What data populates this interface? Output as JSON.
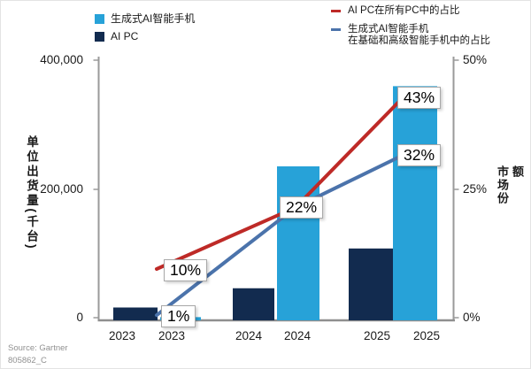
{
  "chart_data": {
    "type": "bar",
    "combo": "bars with overlaid percentage lines (dual axis)",
    "categories": [
      "2023",
      "2024",
      "2025"
    ],
    "x_tick_labels": [
      "2023",
      "2023",
      "2024",
      "2024",
      "2025",
      "2025"
    ],
    "bar_series": [
      {
        "name": "生成式AI智能手机",
        "color": "#27A2D8",
        "values": [
          5000,
          240000,
          365000
        ]
      },
      {
        "name": "AI PC",
        "color": "#122B4F",
        "values": [
          20000,
          50000,
          112000
        ]
      }
    ],
    "line_series": [
      {
        "name": "AI PC在所有PC中的占比",
        "color": "#BE2A27",
        "values_pct": [
          10,
          22,
          43
        ]
      },
      {
        "name": "生成式AI智能手机在基础和高级智能手机中的占比",
        "color": "#4B73AB",
        "values_pct": [
          1,
          22,
          32
        ]
      }
    ],
    "point_labels": [
      "10%",
      "1%",
      "22%",
      "43%",
      "32%"
    ],
    "ylabel_left": "单位出货量(千台)",
    "ylabel_right": "市场份额",
    "yticks_left": [
      "400,000",
      "200,000",
      "0"
    ],
    "yticks_right": [
      "50%",
      "25%",
      "0%"
    ],
    "ylim_left": [
      0,
      400000
    ],
    "ylim_right_pct": [
      0,
      50
    ],
    "grid": false,
    "axis_color": "#9A9A9A",
    "title": ""
  },
  "legend_bars": {
    "items": [
      {
        "label": "生成式AI智能手机"
      },
      {
        "label": "AI PC"
      }
    ]
  },
  "legend_lines": {
    "items": [
      {
        "label": "AI PC在所有PC中的占比"
      },
      {
        "label_line1": "生成式AI智能手机",
        "label_line2": "在基础和高级智能手机中的占比"
      }
    ]
  },
  "source": {
    "line1": "Source: Gartner",
    "line2": "805862_C"
  }
}
